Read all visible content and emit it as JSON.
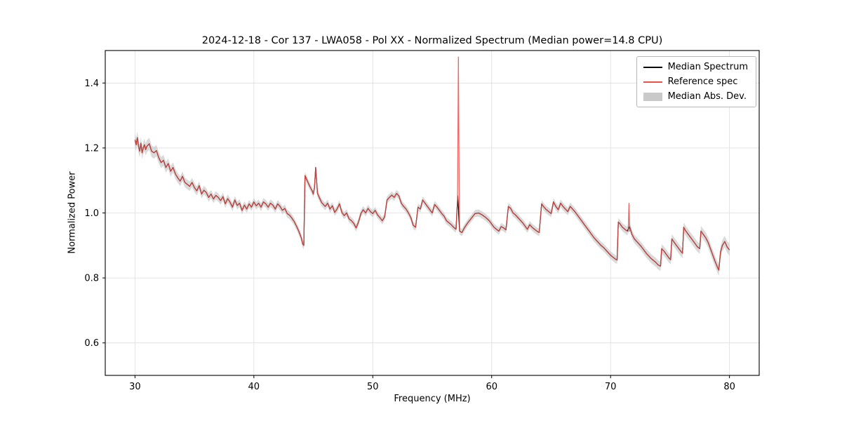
{
  "chart_data": {
    "type": "line",
    "title": "2024-12-18 - Cor 137 - LWA058 - Pol XX - Normalized Spectrum (Median power=14.8 CPU)",
    "xlabel": "Frequency (MHz)",
    "ylabel": "Normalized Power",
    "xlim": [
      27.5,
      82.5
    ],
    "ylim": [
      0.5,
      1.5
    ],
    "xticks": [
      30,
      40,
      50,
      60,
      70,
      80
    ],
    "yticks": [
      0.6,
      0.8,
      1.0,
      1.2,
      1.4
    ],
    "grid": true,
    "colors": {
      "median": "#000000",
      "reference": "#e8504a",
      "band": "#c2c2c2",
      "grid": "#dddddd",
      "frame": "#000000"
    },
    "legend": {
      "position": "upper right",
      "entries": [
        {
          "label": "Median Spectrum",
          "color": "#000000",
          "kind": "line"
        },
        {
          "label": "Reference spec",
          "color": "#e8504a",
          "kind": "line"
        },
        {
          "label": "Median Abs. Dev.",
          "color": "#c9c9c9",
          "kind": "patch"
        }
      ]
    },
    "series": [
      {
        "name": "Median Spectrum",
        "color": "#000000",
        "points": [
          [
            30.0,
            1.225
          ],
          [
            30.1,
            1.21
          ],
          [
            30.2,
            1.232
          ],
          [
            30.3,
            1.205
          ],
          [
            30.4,
            1.19
          ],
          [
            30.5,
            1.215
          ],
          [
            30.6,
            1.185
          ],
          [
            30.7,
            1.2
          ],
          [
            30.8,
            1.21
          ],
          [
            30.9,
            1.195
          ],
          [
            31.0,
            1.205
          ],
          [
            31.2,
            1.213
          ],
          [
            31.4,
            1.19
          ],
          [
            31.6,
            1.185
          ],
          [
            31.8,
            1.192
          ],
          [
            32.0,
            1.17
          ],
          [
            32.2,
            1.155
          ],
          [
            32.4,
            1.162
          ],
          [
            32.6,
            1.14
          ],
          [
            32.8,
            1.152
          ],
          [
            33.0,
            1.128
          ],
          [
            33.2,
            1.14
          ],
          [
            33.4,
            1.12
          ],
          [
            33.6,
            1.108
          ],
          [
            33.8,
            1.098
          ],
          [
            34.0,
            1.113
          ],
          [
            34.2,
            1.094
          ],
          [
            34.4,
            1.088
          ],
          [
            34.6,
            1.082
          ],
          [
            34.8,
            1.094
          ],
          [
            35.0,
            1.078
          ],
          [
            35.2,
            1.068
          ],
          [
            35.4,
            1.084
          ],
          [
            35.6,
            1.058
          ],
          [
            35.8,
            1.07
          ],
          [
            36.0,
            1.063
          ],
          [
            36.2,
            1.048
          ],
          [
            36.4,
            1.058
          ],
          [
            36.6,
            1.043
          ],
          [
            36.8,
            1.054
          ],
          [
            37.0,
            1.048
          ],
          [
            37.2,
            1.038
          ],
          [
            37.4,
            1.05
          ],
          [
            37.6,
            1.028
          ],
          [
            37.8,
            1.044
          ],
          [
            38.0,
            1.033
          ],
          [
            38.2,
            1.018
          ],
          [
            38.4,
            1.04
          ],
          [
            38.6,
            1.023
          ],
          [
            38.8,
            1.03
          ],
          [
            39.0,
            1.008
          ],
          [
            39.2,
            1.024
          ],
          [
            39.4,
            1.012
          ],
          [
            39.6,
            1.028
          ],
          [
            39.8,
            1.018
          ],
          [
            40.0,
            1.034
          ],
          [
            40.2,
            1.022
          ],
          [
            40.4,
            1.03
          ],
          [
            40.6,
            1.018
          ],
          [
            40.8,
            1.034
          ],
          [
            41.0,
            1.028
          ],
          [
            41.2,
            1.018
          ],
          [
            41.4,
            1.03
          ],
          [
            41.6,
            1.024
          ],
          [
            41.8,
            1.012
          ],
          [
            42.0,
            1.028
          ],
          [
            42.2,
            1.02
          ],
          [
            42.4,
            1.008
          ],
          [
            42.6,
            1.014
          ],
          [
            42.8,
            0.998
          ],
          [
            43.0,
            0.993
          ],
          [
            43.2,
            0.984
          ],
          [
            43.4,
            0.973
          ],
          [
            43.6,
            0.958
          ],
          [
            43.8,
            0.942
          ],
          [
            44.0,
            0.922
          ],
          [
            44.1,
            0.905
          ],
          [
            44.2,
            0.9
          ],
          [
            44.3,
            1.115
          ],
          [
            44.5,
            1.098
          ],
          [
            44.7,
            1.082
          ],
          [
            44.9,
            1.068
          ],
          [
            45.0,
            1.058
          ],
          [
            45.1,
            1.078
          ],
          [
            45.2,
            1.14
          ],
          [
            45.35,
            1.06
          ],
          [
            45.5,
            1.048
          ],
          [
            45.7,
            1.032
          ],
          [
            46.0,
            1.02
          ],
          [
            46.2,
            1.03
          ],
          [
            46.4,
            1.012
          ],
          [
            46.6,
            1.022
          ],
          [
            46.8,
            1.002
          ],
          [
            47.0,
            1.012
          ],
          [
            47.2,
            1.028
          ],
          [
            47.4,
            1.002
          ],
          [
            47.6,
            0.992
          ],
          [
            47.8,
            1.0
          ],
          [
            48.0,
            0.982
          ],
          [
            48.2,
            0.976
          ],
          [
            48.4,
            0.968
          ],
          [
            48.6,
            0.954
          ],
          [
            48.8,
            0.972
          ],
          [
            49.0,
            0.998
          ],
          [
            49.2,
            1.01
          ],
          [
            49.4,
            1.0
          ],
          [
            49.6,
            1.014
          ],
          [
            49.8,
            1.004
          ],
          [
            50.0,
            0.998
          ],
          [
            50.2,
            1.008
          ],
          [
            50.4,
            0.994
          ],
          [
            50.6,
            0.986
          ],
          [
            50.8,
            0.976
          ],
          [
            51.0,
            0.988
          ],
          [
            51.2,
            1.04
          ],
          [
            51.4,
            1.048
          ],
          [
            51.6,
            1.055
          ],
          [
            51.8,
            1.048
          ],
          [
            52.0,
            1.06
          ],
          [
            52.2,
            1.052
          ],
          [
            52.4,
            1.03
          ],
          [
            52.6,
            1.02
          ],
          [
            52.8,
            1.012
          ],
          [
            53.0,
            1.0
          ],
          [
            53.2,
            0.986
          ],
          [
            53.4,
            0.962
          ],
          [
            53.6,
            0.956
          ],
          [
            53.8,
            1.018
          ],
          [
            54.0,
            1.012
          ],
          [
            54.2,
            1.04
          ],
          [
            54.4,
            1.03
          ],
          [
            54.6,
            1.02
          ],
          [
            54.8,
            1.01
          ],
          [
            55.0,
            1.0
          ],
          [
            55.2,
            1.026
          ],
          [
            55.4,
            1.018
          ],
          [
            55.6,
            1.008
          ],
          [
            55.8,
            0.998
          ],
          [
            56.0,
            0.99
          ],
          [
            56.2,
            0.976
          ],
          [
            56.4,
            0.97
          ],
          [
            56.6,
            0.964
          ],
          [
            56.8,
            0.956
          ],
          [
            57.0,
            0.95
          ],
          [
            57.15,
            1.052
          ],
          [
            57.3,
            0.944
          ],
          [
            57.5,
            0.94
          ],
          [
            57.7,
            0.954
          ],
          [
            58.0,
            0.97
          ],
          [
            58.3,
            0.984
          ],
          [
            58.6,
            0.998
          ],
          [
            58.9,
            1.0
          ],
          [
            59.2,
            0.994
          ],
          [
            59.5,
            0.986
          ],
          [
            59.8,
            0.976
          ],
          [
            60.0,
            0.966
          ],
          [
            60.2,
            0.956
          ],
          [
            60.4,
            0.95
          ],
          [
            60.6,
            0.944
          ],
          [
            60.8,
            0.958
          ],
          [
            61.0,
            0.954
          ],
          [
            61.2,
            0.948
          ],
          [
            61.4,
            1.02
          ],
          [
            61.6,
            1.014
          ],
          [
            61.8,
            1.0
          ],
          [
            62.0,
            0.994
          ],
          [
            62.2,
            0.986
          ],
          [
            62.4,
            0.978
          ],
          [
            62.6,
            0.97
          ],
          [
            62.8,
            0.96
          ],
          [
            63.0,
            0.95
          ],
          [
            63.2,
            0.964
          ],
          [
            63.4,
            0.956
          ],
          [
            63.6,
            0.95
          ],
          [
            63.8,
            0.944
          ],
          [
            64.0,
            0.94
          ],
          [
            64.2,
            1.028
          ],
          [
            64.4,
            1.018
          ],
          [
            64.6,
            1.01
          ],
          [
            64.8,
            1.004
          ],
          [
            65.0,
            0.998
          ],
          [
            65.2,
            1.034
          ],
          [
            65.4,
            1.02
          ],
          [
            65.6,
            1.01
          ],
          [
            65.8,
            1.03
          ],
          [
            66.0,
            1.02
          ],
          [
            66.2,
            1.012
          ],
          [
            66.4,
            1.004
          ],
          [
            66.6,
            1.02
          ],
          [
            66.8,
            1.012
          ],
          [
            67.0,
            1.004
          ],
          [
            67.2,
            0.994
          ],
          [
            67.4,
            0.984
          ],
          [
            67.6,
            0.974
          ],
          [
            67.8,
            0.964
          ],
          [
            68.0,
            0.954
          ],
          [
            68.2,
            0.944
          ],
          [
            68.4,
            0.934
          ],
          [
            68.6,
            0.924
          ],
          [
            68.8,
            0.916
          ],
          [
            69.0,
            0.908
          ],
          [
            69.2,
            0.9
          ],
          [
            69.4,
            0.894
          ],
          [
            69.6,
            0.886
          ],
          [
            69.8,
            0.878
          ],
          [
            70.0,
            0.87
          ],
          [
            70.2,
            0.864
          ],
          [
            70.4,
            0.858
          ],
          [
            70.55,
            0.855
          ],
          [
            70.65,
            0.972
          ],
          [
            70.8,
            0.966
          ],
          [
            71.0,
            0.956
          ],
          [
            71.2,
            0.95
          ],
          [
            71.4,
            0.944
          ],
          [
            71.6,
            0.958
          ],
          [
            71.8,
            0.934
          ],
          [
            72.0,
            0.92
          ],
          [
            72.2,
            0.912
          ],
          [
            72.4,
            0.904
          ],
          [
            72.6,
            0.896
          ],
          [
            72.8,
            0.886
          ],
          [
            73.0,
            0.876
          ],
          [
            73.2,
            0.868
          ],
          [
            73.4,
            0.86
          ],
          [
            73.6,
            0.854
          ],
          [
            73.8,
            0.848
          ],
          [
            74.0,
            0.84
          ],
          [
            74.2,
            0.836
          ],
          [
            74.3,
            0.89
          ],
          [
            74.5,
            0.882
          ],
          [
            74.7,
            0.872
          ],
          [
            74.9,
            0.862
          ],
          [
            75.05,
            0.856
          ],
          [
            75.15,
            0.92
          ],
          [
            75.3,
            0.912
          ],
          [
            75.5,
            0.902
          ],
          [
            75.7,
            0.892
          ],
          [
            75.9,
            0.882
          ],
          [
            76.05,
            0.876
          ],
          [
            76.15,
            0.956
          ],
          [
            76.3,
            0.946
          ],
          [
            76.5,
            0.936
          ],
          [
            76.7,
            0.926
          ],
          [
            76.9,
            0.916
          ],
          [
            77.1,
            0.906
          ],
          [
            77.3,
            0.896
          ],
          [
            77.5,
            0.89
          ],
          [
            77.6,
            0.944
          ],
          [
            77.8,
            0.934
          ],
          [
            78.0,
            0.924
          ],
          [
            78.2,
            0.91
          ],
          [
            78.4,
            0.89
          ],
          [
            78.6,
            0.87
          ],
          [
            78.8,
            0.85
          ],
          [
            79.0,
            0.832
          ],
          [
            79.1,
            0.824
          ],
          [
            79.25,
            0.88
          ],
          [
            79.4,
            0.9
          ],
          [
            79.6,
            0.912
          ],
          [
            79.8,
            0.896
          ],
          [
            80.0,
            0.886
          ]
        ]
      },
      {
        "name": "Reference spec",
        "color": "#e8504a",
        "same_as": "Median Spectrum",
        "spikes": [
          [
            57.2,
            1.48
          ],
          [
            71.55,
            1.03
          ]
        ]
      },
      {
        "name": "Median Abs. Dev.",
        "kind": "band",
        "around": "Median Spectrum",
        "color": "#c2c2c2",
        "opacity": 0.6,
        "halfwidth_points": [
          [
            30,
            0.02
          ],
          [
            33,
            0.016
          ],
          [
            36,
            0.013
          ],
          [
            40,
            0.012
          ],
          [
            50,
            0.011
          ],
          [
            60,
            0.011
          ],
          [
            70,
            0.012
          ],
          [
            74,
            0.014
          ],
          [
            78,
            0.016
          ],
          [
            80,
            0.018
          ]
        ]
      }
    ]
  }
}
